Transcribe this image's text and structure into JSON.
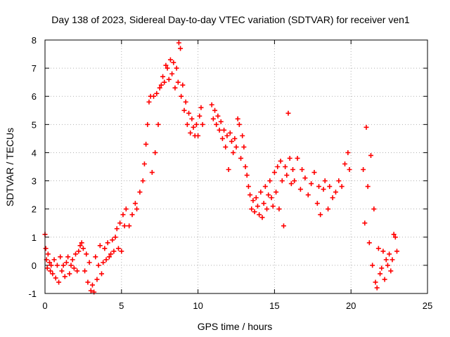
{
  "chart_data": {
    "type": "scatter",
    "title": "Day 138 of 2023, Sidereal Day-to-day VTEC variation (SDTVAR) for receiver ven1",
    "xlabel": "GPS time / hours",
    "ylabel": "SDTVAR / TECUs",
    "xlim": [
      0,
      25
    ],
    "ylim": [
      -1,
      8
    ],
    "xticks": [
      0,
      5,
      10,
      15,
      20,
      25
    ],
    "yticks": [
      -1,
      0,
      1,
      2,
      3,
      4,
      5,
      6,
      7,
      8
    ],
    "grid": true,
    "marker": "+",
    "series_color": "#ff0000",
    "series": [
      {
        "name": "ven1",
        "points": [
          [
            0.0,
            1.1
          ],
          [
            0.05,
            0.6
          ],
          [
            0.1,
            0.2
          ],
          [
            0.15,
            -0.1
          ],
          [
            0.2,
            0.4
          ],
          [
            0.3,
            0.1
          ],
          [
            0.35,
            -0.2
          ],
          [
            0.4,
            0.0
          ],
          [
            0.5,
            -0.3
          ],
          [
            0.6,
            0.2
          ],
          [
            0.7,
            -0.45
          ],
          [
            0.8,
            0.0
          ],
          [
            0.9,
            -0.6
          ],
          [
            1.0,
            0.3
          ],
          [
            1.1,
            -0.2
          ],
          [
            1.2,
            0.0
          ],
          [
            1.3,
            -0.4
          ],
          [
            1.4,
            0.1
          ],
          [
            1.5,
            0.3
          ],
          [
            1.6,
            -0.3
          ],
          [
            1.7,
            0.0
          ],
          [
            1.8,
            0.2
          ],
          [
            1.9,
            -0.1
          ],
          [
            2.0,
            0.4
          ],
          [
            2.1,
            -0.2
          ],
          [
            2.2,
            0.5
          ],
          [
            2.3,
            0.7
          ],
          [
            2.4,
            0.8
          ],
          [
            2.5,
            0.6
          ],
          [
            2.6,
            -0.2
          ],
          [
            2.7,
            0.4
          ],
          [
            2.8,
            -0.6
          ],
          [
            2.9,
            0.1
          ],
          [
            3.0,
            -0.9
          ],
          [
            3.1,
            -0.7
          ],
          [
            3.2,
            -0.95
          ],
          [
            3.3,
            0.3
          ],
          [
            3.4,
            -0.5
          ],
          [
            3.5,
            0.0
          ],
          [
            3.6,
            0.7
          ],
          [
            3.7,
            -0.3
          ],
          [
            3.8,
            0.1
          ],
          [
            3.9,
            0.6
          ],
          [
            4.0,
            0.2
          ],
          [
            4.1,
            0.8
          ],
          [
            4.2,
            0.3
          ],
          [
            4.3,
            0.4
          ],
          [
            4.4,
            0.9
          ],
          [
            4.5,
            0.5
          ],
          [
            4.6,
            1.0
          ],
          [
            4.7,
            1.3
          ],
          [
            4.8,
            0.6
          ],
          [
            4.9,
            1.5
          ],
          [
            5.0,
            0.5
          ],
          [
            5.1,
            1.8
          ],
          [
            5.2,
            1.4
          ],
          [
            5.3,
            2.0
          ],
          [
            5.5,
            1.4
          ],
          [
            5.7,
            1.8
          ],
          [
            5.9,
            2.2
          ],
          [
            6.0,
            2.0
          ],
          [
            6.2,
            2.6
          ],
          [
            6.4,
            3.0
          ],
          [
            6.5,
            3.6
          ],
          [
            6.6,
            4.3
          ],
          [
            6.7,
            5.0
          ],
          [
            6.8,
            5.8
          ],
          [
            6.9,
            6.0
          ],
          [
            7.0,
            3.3
          ],
          [
            7.1,
            6.0
          ],
          [
            7.2,
            4.0
          ],
          [
            7.3,
            6.1
          ],
          [
            7.4,
            5.0
          ],
          [
            7.5,
            6.3
          ],
          [
            7.6,
            6.4
          ],
          [
            7.7,
            6.7
          ],
          [
            7.8,
            6.5
          ],
          [
            7.9,
            7.1
          ],
          [
            8.0,
            7.0
          ],
          [
            8.1,
            6.6
          ],
          [
            8.2,
            7.3
          ],
          [
            8.3,
            6.8
          ],
          [
            8.4,
            7.2
          ],
          [
            8.5,
            6.3
          ],
          [
            8.6,
            7.0
          ],
          [
            8.7,
            6.5
          ],
          [
            8.75,
            7.9
          ],
          [
            8.85,
            7.7
          ],
          [
            8.9,
            6.0
          ],
          [
            9.0,
            6.4
          ],
          [
            9.1,
            5.5
          ],
          [
            9.2,
            5.8
          ],
          [
            9.3,
            5.0
          ],
          [
            9.4,
            5.4
          ],
          [
            9.5,
            4.7
          ],
          [
            9.6,
            5.2
          ],
          [
            9.7,
            4.9
          ],
          [
            9.8,
            4.6
          ],
          [
            9.9,
            5.0
          ],
          [
            10.0,
            4.6
          ],
          [
            10.1,
            5.3
          ],
          [
            10.2,
            5.6
          ],
          [
            10.3,
            5.0
          ],
          [
            10.9,
            5.7
          ],
          [
            11.0,
            5.2
          ],
          [
            11.1,
            5.5
          ],
          [
            11.2,
            5.0
          ],
          [
            11.3,
            5.3
          ],
          [
            11.4,
            4.8
          ],
          [
            11.5,
            5.1
          ],
          [
            11.6,
            4.5
          ],
          [
            11.7,
            4.8
          ],
          [
            11.8,
            4.2
          ],
          [
            11.9,
            4.6
          ],
          [
            12.0,
            3.4
          ],
          [
            12.1,
            4.7
          ],
          [
            12.2,
            4.4
          ],
          [
            12.3,
            4.0
          ],
          [
            12.4,
            4.5
          ],
          [
            12.5,
            4.2
          ],
          [
            12.6,
            5.2
          ],
          [
            12.7,
            5.0
          ],
          [
            12.8,
            3.8
          ],
          [
            12.9,
            4.6
          ],
          [
            13.0,
            4.2
          ],
          [
            13.1,
            3.5
          ],
          [
            13.2,
            3.2
          ],
          [
            13.3,
            2.8
          ],
          [
            13.4,
            2.5
          ],
          [
            13.5,
            2.0
          ],
          [
            13.6,
            2.3
          ],
          [
            13.7,
            1.9
          ],
          [
            13.8,
            2.4
          ],
          [
            13.9,
            2.1
          ],
          [
            14.0,
            1.8
          ],
          [
            14.1,
            2.6
          ],
          [
            14.2,
            1.7
          ],
          [
            14.3,
            2.2
          ],
          [
            14.4,
            2.8
          ],
          [
            14.5,
            2.0
          ],
          [
            14.6,
            2.5
          ],
          [
            14.7,
            3.0
          ],
          [
            14.8,
            2.4
          ],
          [
            14.9,
            2.1
          ],
          [
            15.0,
            3.3
          ],
          [
            15.1,
            2.6
          ],
          [
            15.2,
            3.5
          ],
          [
            15.3,
            2.0
          ],
          [
            15.4,
            3.7
          ],
          [
            15.5,
            3.0
          ],
          [
            15.6,
            1.4
          ],
          [
            15.7,
            3.5
          ],
          [
            15.8,
            3.2
          ],
          [
            15.9,
            5.4
          ],
          [
            16.0,
            3.8
          ],
          [
            16.1,
            2.9
          ],
          [
            16.2,
            3.4
          ],
          [
            16.3,
            3.0
          ],
          [
            16.5,
            3.8
          ],
          [
            16.7,
            2.7
          ],
          [
            16.8,
            3.4
          ],
          [
            17.0,
            3.1
          ],
          [
            17.2,
            2.5
          ],
          [
            17.4,
            2.9
          ],
          [
            17.6,
            3.3
          ],
          [
            17.8,
            2.2
          ],
          [
            17.9,
            2.8
          ],
          [
            18.0,
            1.8
          ],
          [
            18.2,
            2.7
          ],
          [
            18.3,
            3.0
          ],
          [
            18.5,
            2.0
          ],
          [
            18.6,
            2.8
          ],
          [
            18.8,
            2.4
          ],
          [
            19.0,
            2.6
          ],
          [
            19.2,
            3.0
          ],
          [
            19.4,
            2.8
          ],
          [
            19.6,
            3.6
          ],
          [
            19.8,
            4.0
          ],
          [
            19.9,
            3.4
          ],
          [
            20.8,
            3.4
          ],
          [
            20.9,
            1.5
          ],
          [
            21.0,
            4.9
          ],
          [
            21.1,
            2.8
          ],
          [
            21.2,
            0.8
          ],
          [
            21.3,
            3.9
          ],
          [
            21.4,
            0.0
          ],
          [
            21.5,
            2.0
          ],
          [
            21.6,
            -0.6
          ],
          [
            21.7,
            -0.8
          ],
          [
            21.8,
            0.6
          ],
          [
            21.9,
            -0.3
          ],
          [
            22.0,
            -0.1
          ],
          [
            22.1,
            0.5
          ],
          [
            22.2,
            -0.5
          ],
          [
            22.3,
            0.2
          ],
          [
            22.4,
            0.0
          ],
          [
            22.5,
            0.4
          ],
          [
            22.6,
            -0.2
          ],
          [
            22.7,
            0.2
          ],
          [
            22.8,
            1.1
          ],
          [
            22.9,
            1.0
          ],
          [
            23.0,
            0.5
          ]
        ]
      }
    ]
  }
}
